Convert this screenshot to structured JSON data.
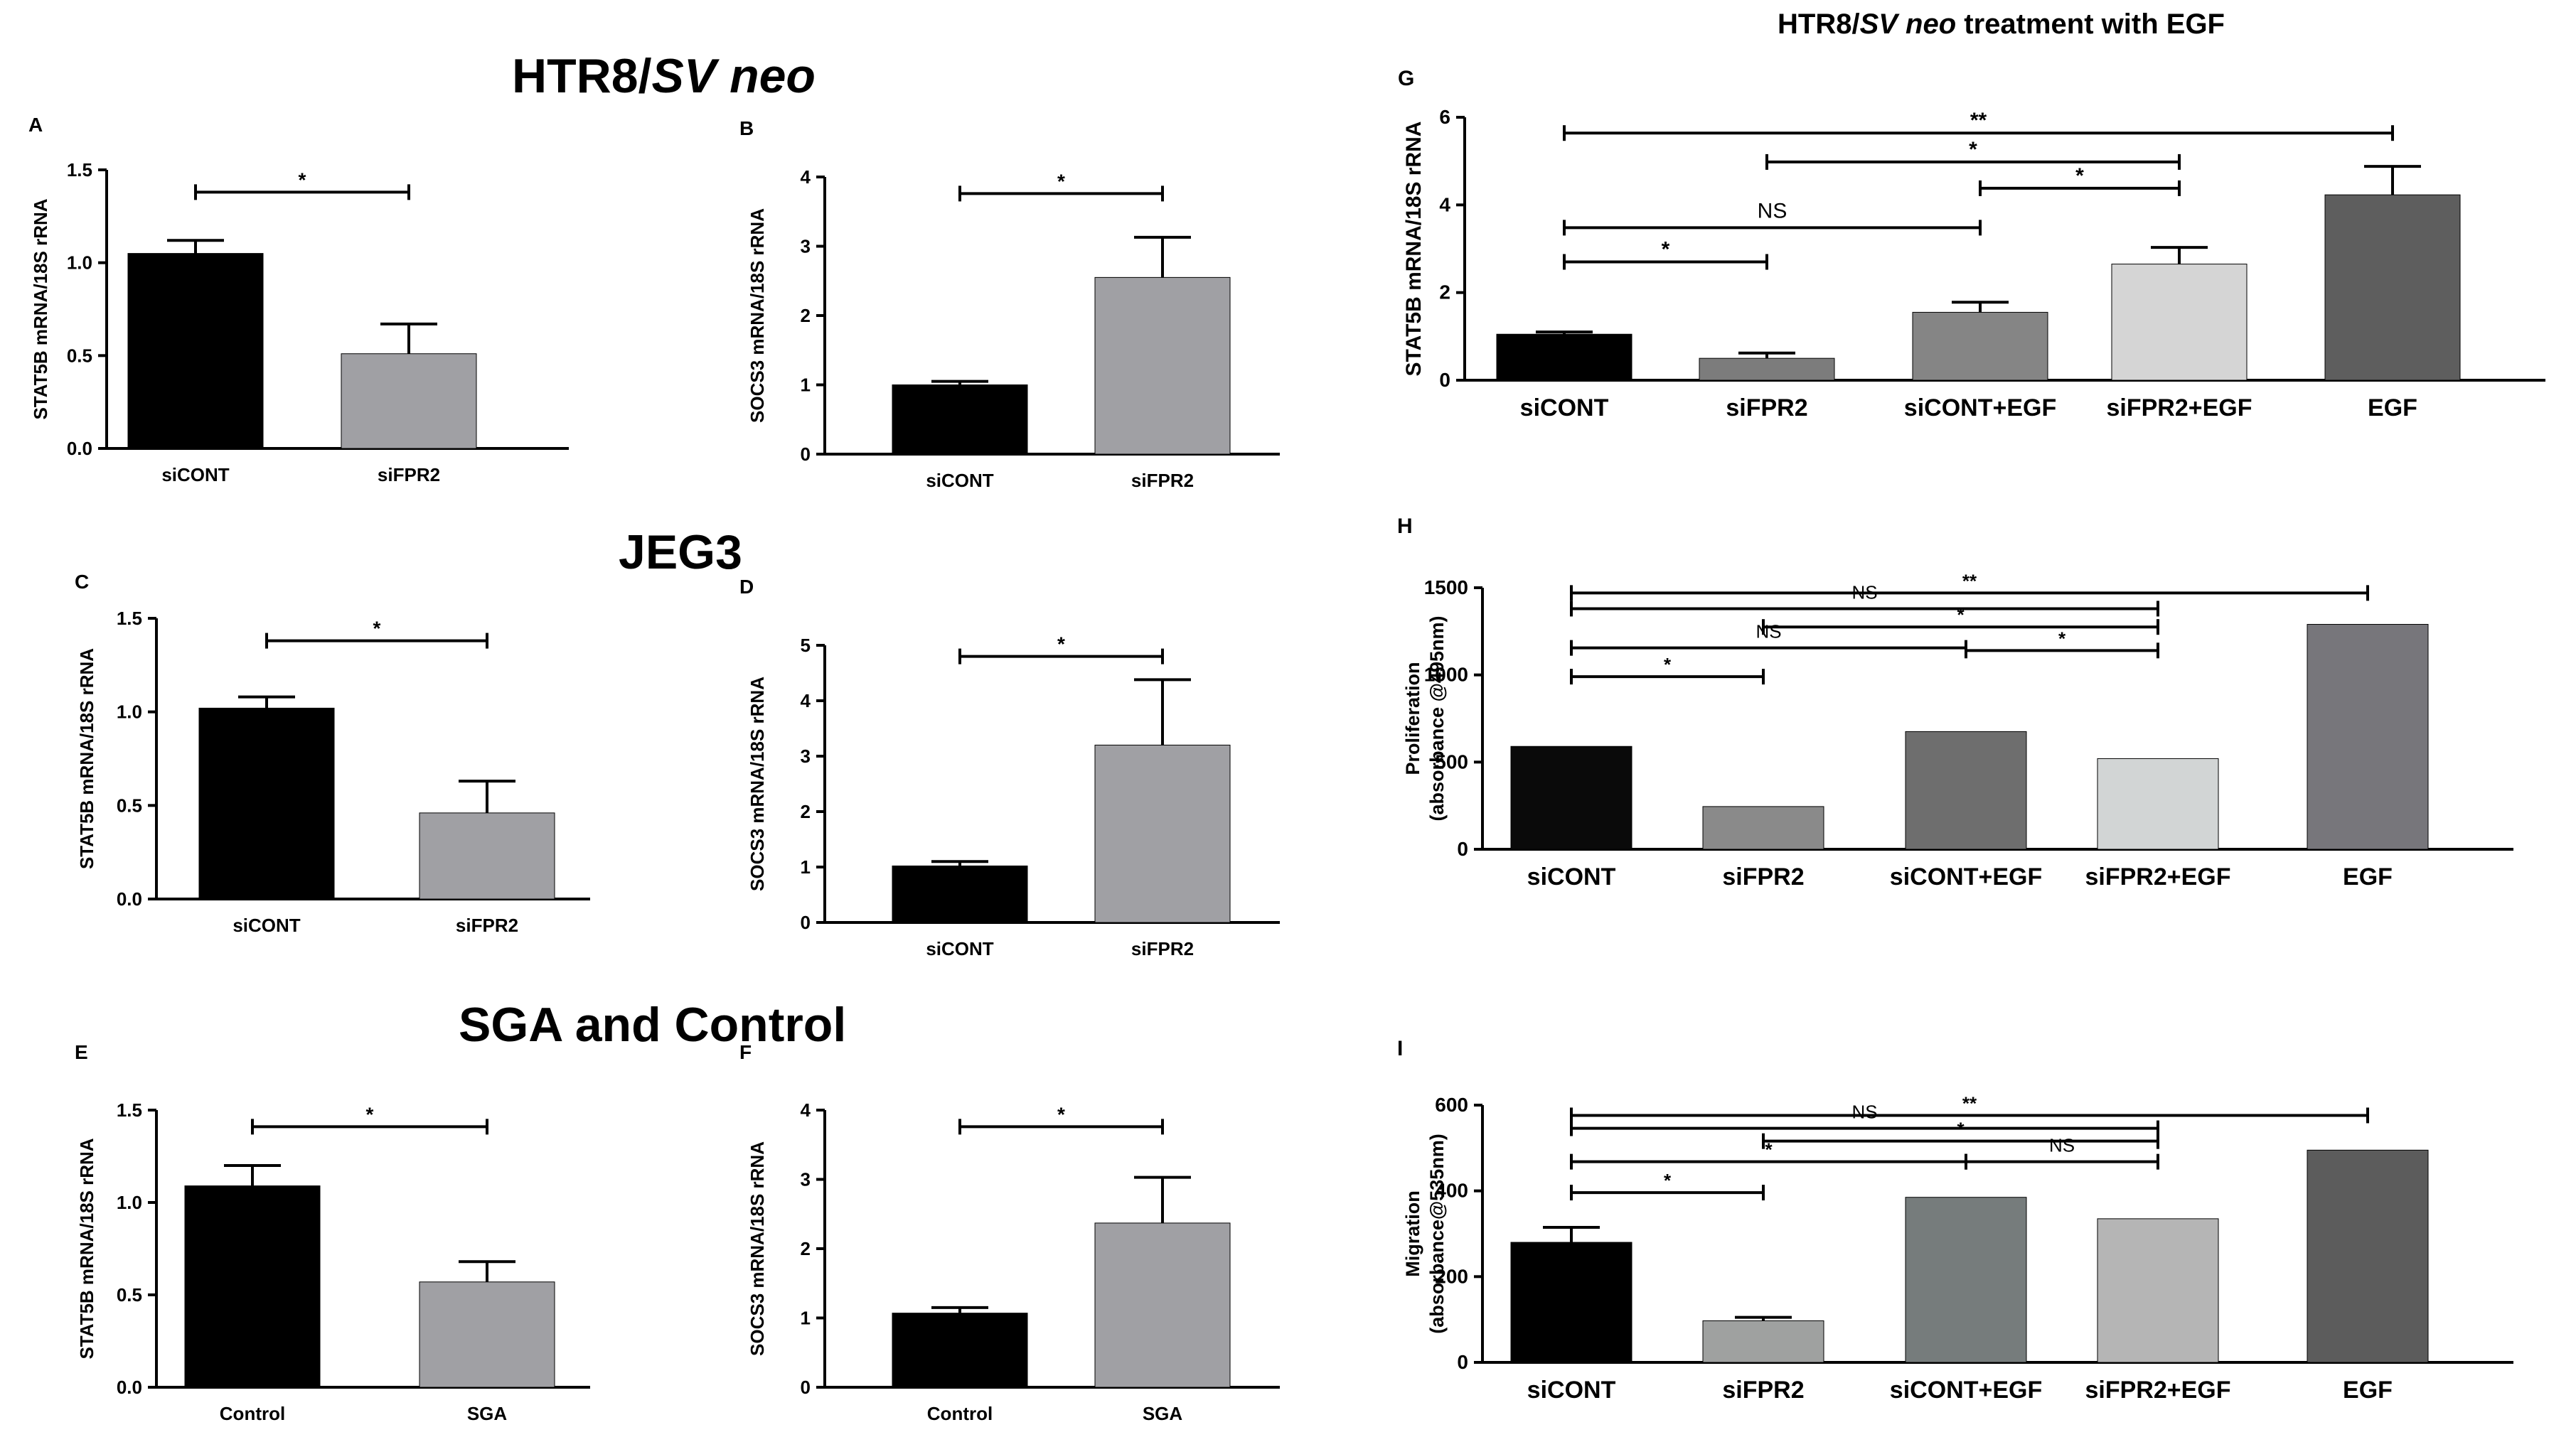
{
  "page": {
    "sections": [
      {
        "name": "section-title-htr8",
        "prefix": "HTR8/",
        "italic": "SV neo"
      },
      {
        "name": "section-title-jeg3",
        "prefix": "JEG3",
        "italic": ""
      },
      {
        "name": "section-title-sga",
        "prefix": "SGA and Control",
        "italic": ""
      }
    ],
    "right_title": {
      "prefix": "HTR8/",
      "italic": "SV neo",
      "suffix": " treatment with EGF"
    }
  },
  "chart_data": [
    {
      "panel": "A",
      "type": "bar",
      "categories": [
        "siCONT",
        "siFPR2"
      ],
      "values": [
        1.05,
        0.51
      ],
      "errors": [
        0.07,
        0.16
      ],
      "colors": [
        "#000000",
        "#a0a0a4"
      ],
      "ylabel": "STAT5B mRNA/18S rRNA",
      "ylim": [
        0,
        1.5
      ],
      "ticks": [
        "0.0",
        "0.5",
        "1.0",
        "1.5"
      ],
      "tick_values": [
        0,
        0.5,
        1.0,
        1.5
      ],
      "significance": [
        {
          "from": 0,
          "to": 1,
          "label": "*"
        }
      ]
    },
    {
      "panel": "B",
      "type": "bar",
      "categories": [
        "siCONT",
        "siFPR2"
      ],
      "values": [
        1.0,
        2.55
      ],
      "errors": [
        0.05,
        0.58
      ],
      "colors": [
        "#000000",
        "#a0a0a4"
      ],
      "ylabel": "SOCS3 mRNA/18S rRNA",
      "ylim": [
        0,
        4
      ],
      "ticks": [
        "0",
        "1",
        "2",
        "3",
        "4"
      ],
      "tick_values": [
        0,
        1,
        2,
        3,
        4
      ],
      "significance": [
        {
          "from": 0,
          "to": 1,
          "label": "*"
        }
      ]
    },
    {
      "panel": "C",
      "type": "bar",
      "categories": [
        "siCONT",
        "siFPR2"
      ],
      "values": [
        1.02,
        0.46
      ],
      "errors": [
        0.06,
        0.17
      ],
      "colors": [
        "#000000",
        "#a0a0a4"
      ],
      "ylabel": "STAT5B mRNA/18S rRNA",
      "ylim": [
        0,
        1.5
      ],
      "ticks": [
        "0.0",
        "0.5",
        "1.0",
        "1.5"
      ],
      "tick_values": [
        0,
        0.5,
        1.0,
        1.5
      ],
      "significance": [
        {
          "from": 0,
          "to": 1,
          "label": "*"
        }
      ]
    },
    {
      "panel": "D",
      "type": "bar",
      "categories": [
        "siCONT",
        "siFPR2"
      ],
      "values": [
        1.02,
        3.2
      ],
      "errors": [
        0.08,
        1.18
      ],
      "colors": [
        "#000000",
        "#a0a0a4"
      ],
      "ylabel": "SOCS3 mRNA/18S rRNA",
      "ylim": [
        0,
        5
      ],
      "ticks": [
        "0",
        "1",
        "2",
        "3",
        "4",
        "5"
      ],
      "tick_values": [
        0,
        1,
        2,
        3,
        4,
        5
      ],
      "significance": [
        {
          "from": 0,
          "to": 1,
          "label": "*"
        }
      ]
    },
    {
      "panel": "E",
      "type": "bar",
      "categories": [
        "Control",
        "SGA"
      ],
      "values": [
        1.09,
        0.57
      ],
      "errors": [
        0.11,
        0.11
      ],
      "colors": [
        "#000000",
        "#a0a0a4"
      ],
      "ylabel": "STAT5B mRNA/18S rRNA",
      "ylim": [
        0,
        1.5
      ],
      "ticks": [
        "0.0",
        "0.5",
        "1.0",
        "1.5"
      ],
      "tick_values": [
        0,
        0.5,
        1.0,
        1.5
      ],
      "significance": [
        {
          "from": 0,
          "to": 1,
          "label": "*"
        }
      ]
    },
    {
      "panel": "F",
      "type": "bar",
      "categories": [
        "Control",
        "SGA"
      ],
      "values": [
        1.07,
        2.37
      ],
      "errors": [
        0.08,
        0.66
      ],
      "colors": [
        "#000000",
        "#a0a0a4"
      ],
      "ylabel": "SOCS3 mRNA/18S rRNA",
      "ylim": [
        0,
        4
      ],
      "ticks": [
        "0",
        "1",
        "2",
        "3",
        "4"
      ],
      "tick_values": [
        0,
        1,
        2,
        3,
        4
      ],
      "significance": [
        {
          "from": 0,
          "to": 1,
          "label": "*"
        }
      ]
    },
    {
      "panel": "G",
      "type": "bar",
      "categories": [
        "siCONT",
        "siFPR2",
        "siCONT+EGF",
        "siFPR2+EGF",
        "EGF"
      ],
      "values": [
        1.05,
        0.5,
        1.55,
        2.65,
        4.23
      ],
      "errors": [
        0.05,
        0.12,
        0.23,
        0.38,
        0.65
      ],
      "colors": [
        "#000000",
        "#7c7c7c",
        "#858585",
        "#d5d5d5",
        "#5e5e5e"
      ],
      "ylabel": "STAT5B mRNA/18S rRNA",
      "ylim": [
        0,
        6
      ],
      "ticks": [
        "0",
        "2",
        "4",
        "6"
      ],
      "tick_values": [
        0,
        2,
        4,
        6
      ],
      "significance": [
        {
          "from": 0,
          "to": 4,
          "label": "**"
        },
        {
          "from": 1,
          "to": 3,
          "label": "*"
        },
        {
          "from": 2,
          "to": 3,
          "label": "*"
        },
        {
          "from": 0,
          "to": 2,
          "label": "NS"
        },
        {
          "from": 0,
          "to": 1,
          "label": "*"
        }
      ]
    },
    {
      "panel": "H",
      "type": "bar",
      "categories": [
        "siCONT",
        "siFPR2",
        "siCONT+EGF",
        "siFPR2+EGF",
        "EGF"
      ],
      "values": [
        590,
        245,
        675,
        520,
        1290
      ],
      "errors": [
        0,
        0,
        0,
        0,
        0
      ],
      "colors": [
        "#0a0a0a",
        "#8a8a8a",
        "#6e6e6e",
        "#d2d5d5",
        "#77767b"
      ],
      "ylabel": "Proliferation",
      "ylabel2": "(absorbance @495nm)",
      "ylim": [
        0,
        1500
      ],
      "ticks": [
        "0",
        "500",
        "1000",
        "1500"
      ],
      "tick_values": [
        0,
        500,
        1000,
        1500
      ],
      "significance": [
        {
          "from": 0,
          "to": 4,
          "label": "**"
        },
        {
          "from": 0,
          "to": 3,
          "label": "NS"
        },
        {
          "from": 1,
          "to": 3,
          "label": "*"
        },
        {
          "from": 0,
          "to": 2,
          "label": "NS"
        },
        {
          "from": 2,
          "to": 3,
          "label": "*"
        },
        {
          "from": 0,
          "to": 1,
          "label": "*"
        }
      ]
    },
    {
      "panel": "I",
      "type": "bar",
      "categories": [
        "siCONT",
        "siFPR2",
        "siCONT+EGF",
        "siFPR2+EGF",
        "EGF"
      ],
      "values": [
        280,
        97,
        385,
        335,
        495
      ],
      "errors": [
        35,
        8,
        0,
        0,
        0
      ],
      "colors": [
        "#000000",
        "#9fa1a0",
        "#767c7c",
        "#b5b5b5",
        "#5c5c5c"
      ],
      "ylabel": "Migration",
      "ylabel2": "(absorbance@535nm)",
      "ylim": [
        0,
        600
      ],
      "ticks": [
        "0",
        "200",
        "400",
        "600"
      ],
      "tick_values": [
        0,
        200,
        400,
        600
      ],
      "significance": [
        {
          "from": 0,
          "to": 4,
          "label": "**"
        },
        {
          "from": 0,
          "to": 3,
          "label": "NS"
        },
        {
          "from": 1,
          "to": 3,
          "label": "*"
        },
        {
          "from": 0,
          "to": 2,
          "label": "*"
        },
        {
          "from": 2,
          "to": 3,
          "label": "NS"
        },
        {
          "from": 0,
          "to": 1,
          "label": "*"
        }
      ]
    }
  ]
}
